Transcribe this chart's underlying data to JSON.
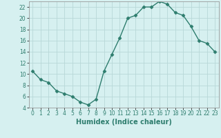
{
  "x": [
    0,
    1,
    2,
    3,
    4,
    5,
    6,
    7,
    8,
    9,
    10,
    11,
    12,
    13,
    14,
    15,
    16,
    17,
    18,
    19,
    20,
    21,
    22,
    23
  ],
  "y": [
    10.5,
    9.0,
    8.5,
    7.0,
    6.5,
    6.0,
    5.0,
    4.5,
    5.5,
    10.5,
    13.5,
    16.5,
    20.0,
    20.5,
    22.0,
    22.0,
    23.0,
    22.5,
    21.0,
    20.5,
    18.5,
    16.0,
    15.5,
    14.0
  ],
  "line_color": "#2e7d6e",
  "marker": "D",
  "marker_size": 2.5,
  "bg_color": "#d6f0f0",
  "grid_color": "#b8d8d8",
  "xlabel": "Humidex (Indice chaleur)",
  "xlim": [
    -0.5,
    23.5
  ],
  "ylim": [
    4,
    23
  ],
  "yticks": [
    4,
    6,
    8,
    10,
    12,
    14,
    16,
    18,
    20,
    22
  ],
  "xticks": [
    0,
    1,
    2,
    3,
    4,
    5,
    6,
    7,
    8,
    9,
    10,
    11,
    12,
    13,
    14,
    15,
    16,
    17,
    18,
    19,
    20,
    21,
    22,
    23
  ],
  "tick_fontsize": 5.5,
  "xlabel_fontsize": 7,
  "line_width": 1.0
}
